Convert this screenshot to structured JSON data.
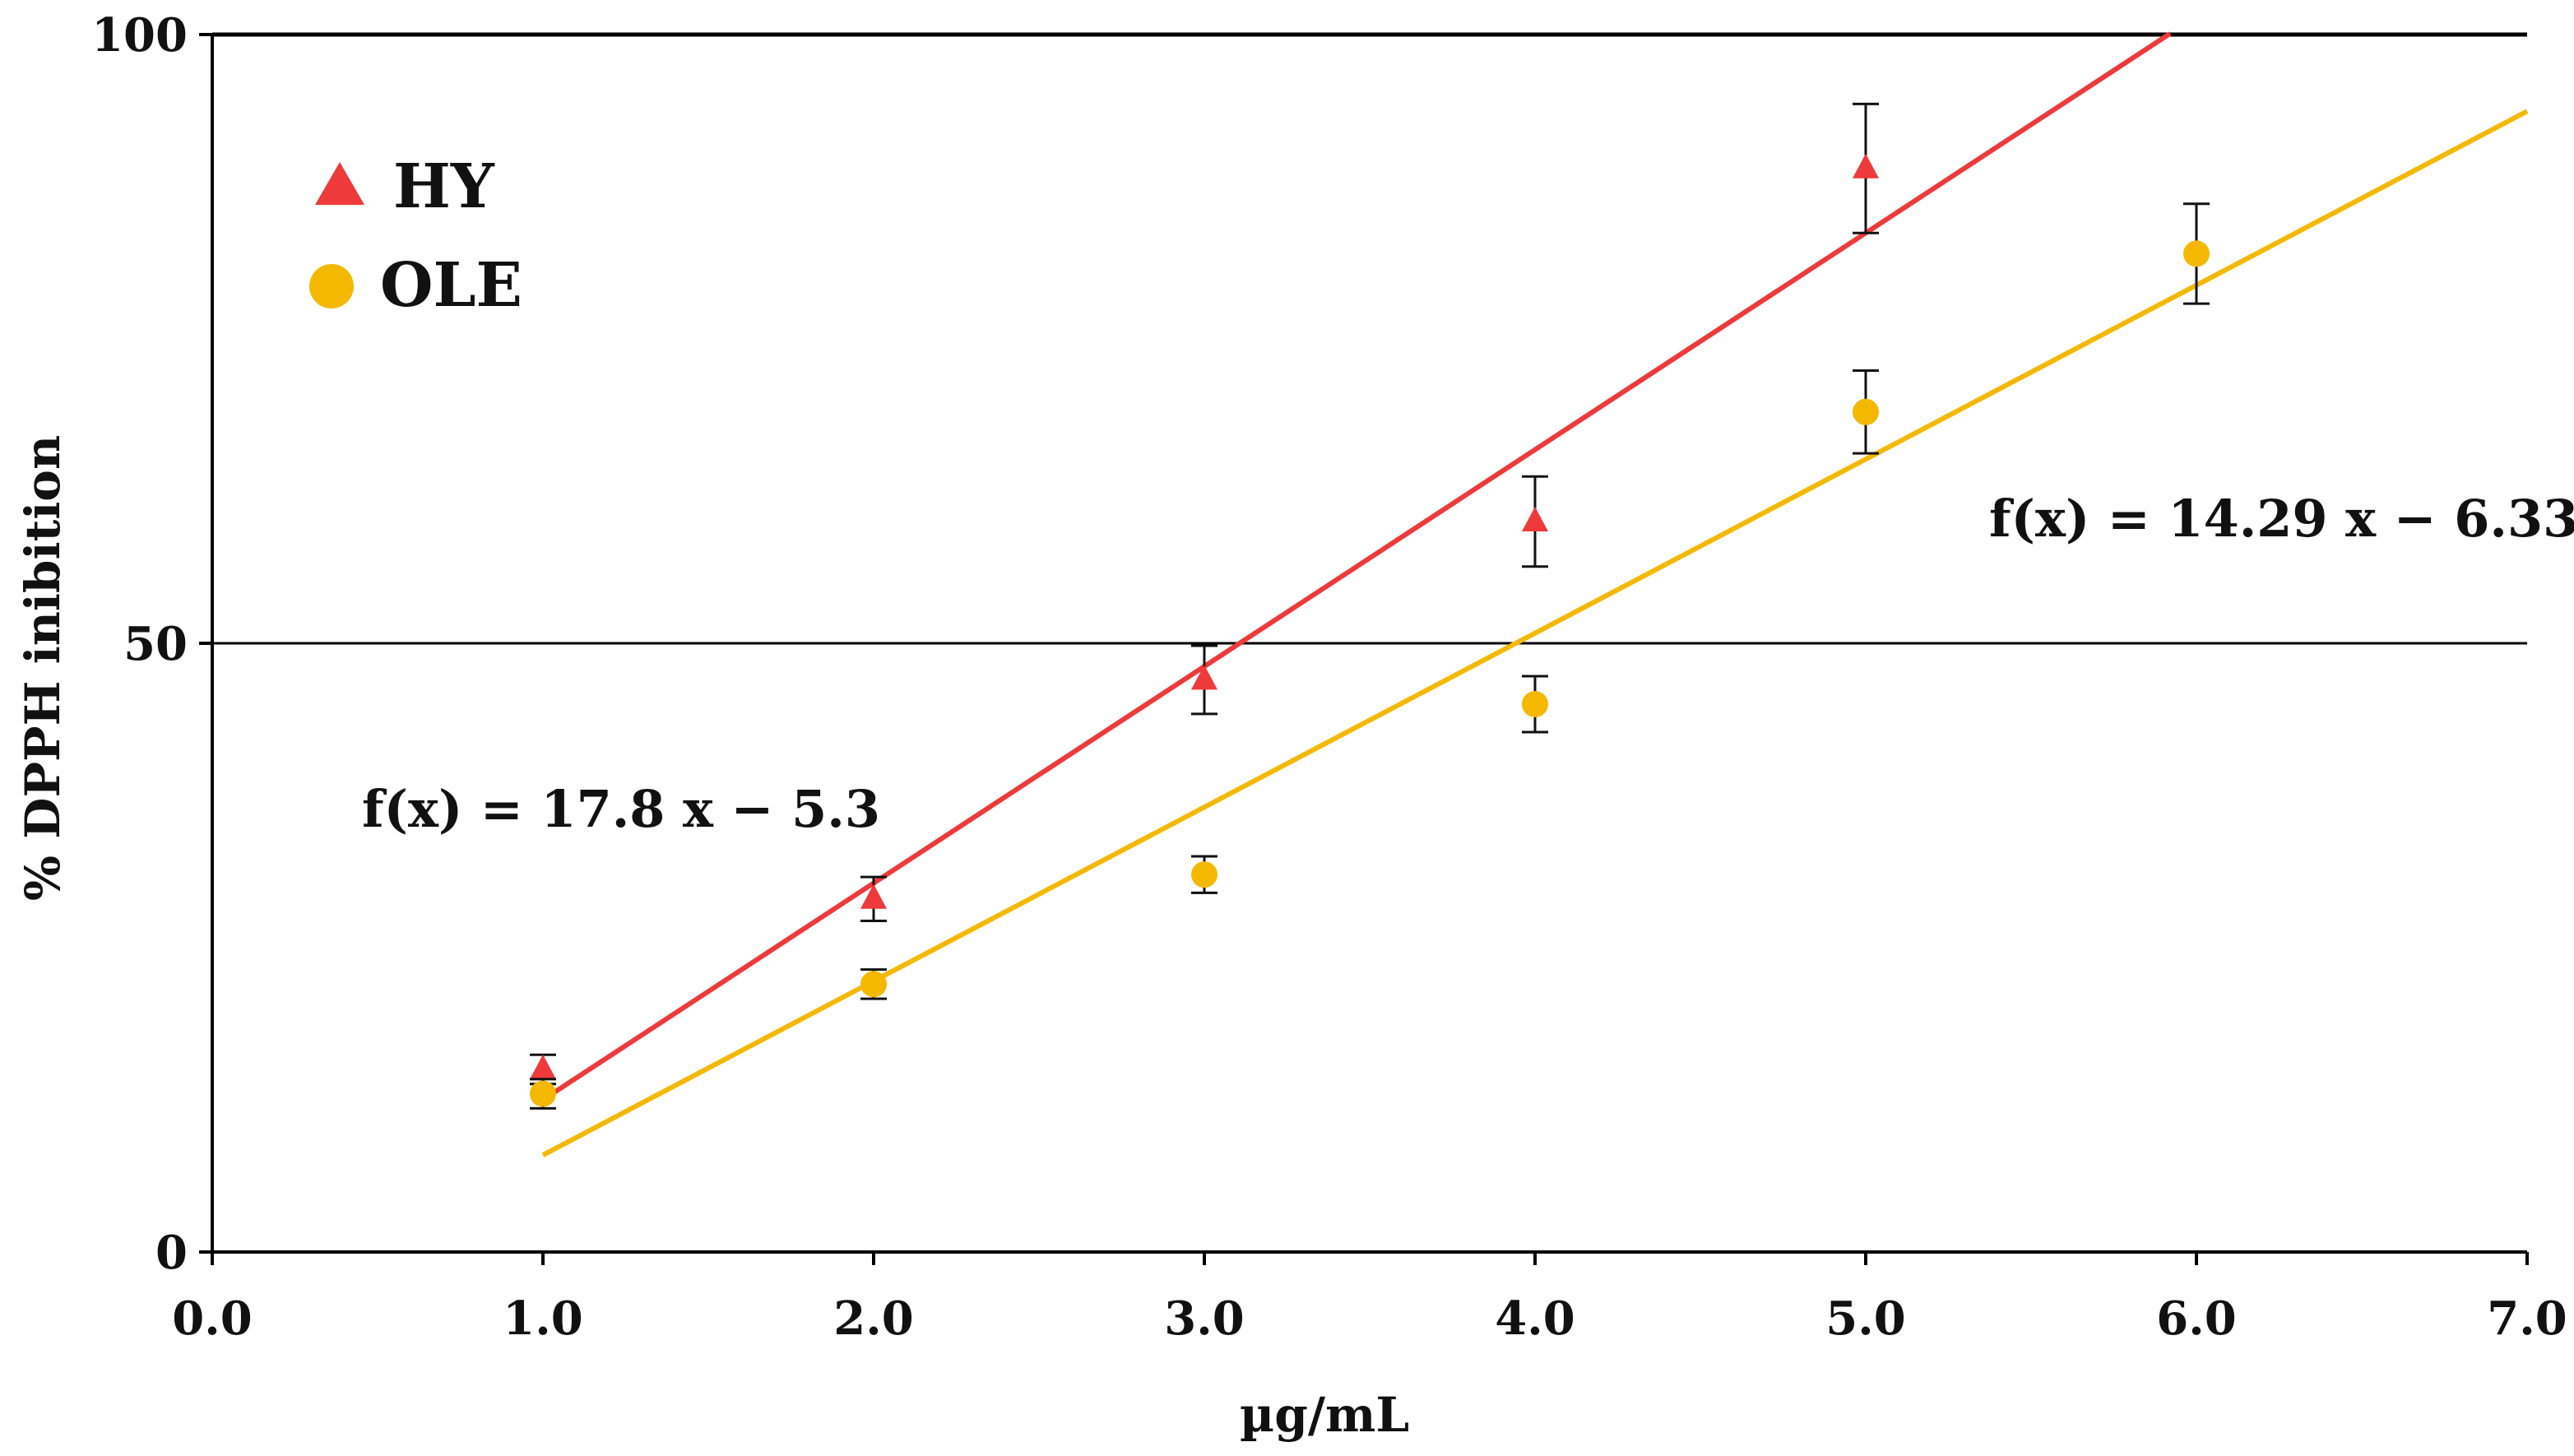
{
  "chart_data": {
    "type": "scatter",
    "title": "",
    "xlabel": "µg/mL",
    "ylabel": "% DPPH inibition",
    "xlim": [
      0,
      7
    ],
    "ylim": [
      0,
      100
    ],
    "x_ticks": [
      "0.0",
      "1.0",
      "2.0",
      "3.0",
      "4.0",
      "5.0",
      "6.0",
      "7.0"
    ],
    "y_ticks": [
      "0",
      "50",
      "100"
    ],
    "reference_line_y": 50,
    "legend_position": "top-left",
    "series": [
      {
        "name": "HY",
        "marker": "triangle",
        "color": "#ee3a3a",
        "x": [
          1,
          2,
          3,
          4,
          5
        ],
        "y": [
          15,
          29,
          47,
          60,
          89
        ],
        "error": [
          1.2,
          1.8,
          2.8,
          3.7,
          5.3
        ],
        "fit": {
          "label": "f(x) = 17.8 x − 5.3",
          "slope": 17.8,
          "intercept": -5.3,
          "x_range": [
            1,
            5.92
          ]
        }
      },
      {
        "name": "OLE",
        "marker": "circle",
        "color": "#f5b800",
        "x": [
          1,
          2,
          3,
          4,
          5,
          6
        ],
        "y": [
          13,
          22,
          31,
          45,
          69,
          82
        ],
        "error": [
          1.2,
          1.2,
          1.5,
          2.3,
          3.4,
          4.1
        ],
        "fit": {
          "label": "f(x) = 14.29 x − 6.33",
          "slope": 14.29,
          "intercept": -6.33,
          "x_range": [
            1,
            7
          ]
        }
      }
    ]
  }
}
